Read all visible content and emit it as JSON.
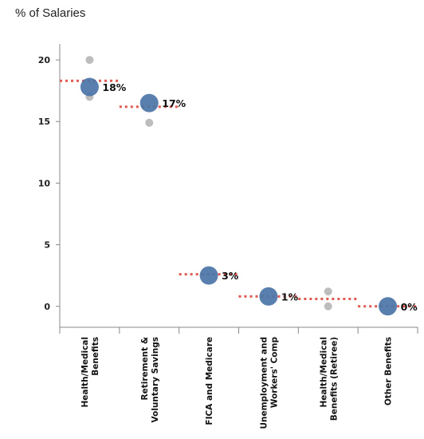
{
  "chart_data": {
    "type": "scatter",
    "title": "",
    "ylabel": "% of Salaries",
    "xlabel": "",
    "ylim": [
      -1.7,
      21.3
    ],
    "yticks": [
      0,
      5,
      10,
      15,
      20
    ],
    "grid": false,
    "categories": [
      [
        "Health/Medical",
        "Benefits"
      ],
      [
        "Retirement &",
        "Voluntary Savings"
      ],
      [
        "FICA and Medicare"
      ],
      [
        "Unemployment and",
        "Workers' Comp"
      ],
      [
        "Health/Medical",
        "Benefits (Retiree)"
      ],
      [
        "Other Benefits"
      ]
    ],
    "series": [
      {
        "name": "",
        "kind": "average",
        "values": [
          17.8,
          16.5,
          2.5,
          0.8,
          null,
          0.0
        ],
        "labels": [
          "18%",
          "17%",
          "3%",
          "1%",
          "",
          "0%"
        ]
      },
      {
        "name": "",
        "kind": "reference",
        "values": [
          18.3,
          16.2,
          2.6,
          0.8,
          0.6,
          0.0
        ]
      }
    ],
    "points": [
      {
        "category": 0,
        "value": 20.0
      },
      {
        "category": 0,
        "value": 17.0
      },
      {
        "category": 1,
        "value": 14.9
      },
      {
        "category": 4,
        "value": 1.2
      },
      {
        "category": 4,
        "value": 0.0
      }
    ],
    "colors": {
      "average": "#4a74a6",
      "reference": "#e05a52",
      "points": "#bdbdbd",
      "axis": "#888888"
    }
  }
}
